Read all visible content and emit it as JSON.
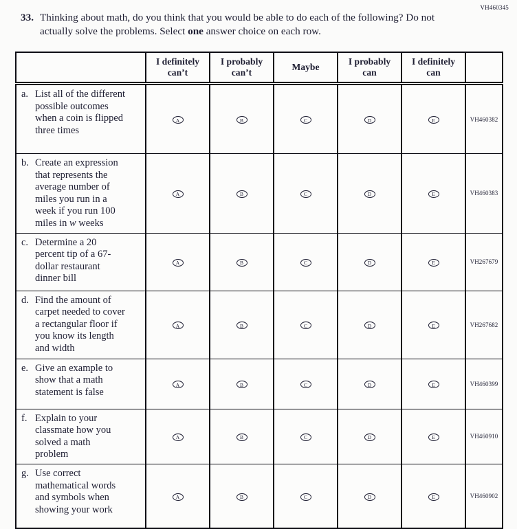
{
  "page": {
    "form_code": "VH460345"
  },
  "question": {
    "number": "33.",
    "runs": [
      {
        "text": "Thinking about math, do you think that you would be able to do each of the following? Do not actually solve the problems. Select "
      },
      {
        "text": "one",
        "bold": true
      },
      {
        "text": " answer choice on each row."
      }
    ]
  },
  "table": {
    "columns": [
      "I definitely can’t",
      "I probably can’t",
      "Maybe",
      "I probably can",
      "I definitely can"
    ],
    "bubble_letters": [
      "A",
      "B",
      "C",
      "D",
      "E"
    ],
    "rows": [
      {
        "letter": "a.",
        "segments": [
          {
            "text": "List all of the different possible outcomes when a coin is flipped three times"
          }
        ],
        "code": "VH460382"
      },
      {
        "letter": "b.",
        "segments": [
          {
            "text": "Create an expression that represents the average number of miles you run in a week if you run 100 miles in "
          },
          {
            "text": "w",
            "italic": true
          },
          {
            "text": " weeks"
          }
        ],
        "code": "VH460383"
      },
      {
        "letter": "c.",
        "segments": [
          {
            "text": "Determine a 20 percent tip of a 67-dollar restaurant dinner bill"
          }
        ],
        "code": "VH267679"
      },
      {
        "letter": "d.",
        "segments": [
          {
            "text": "Find the amount of carpet needed to cover a rectangular floor if you know its length and width"
          }
        ],
        "code": "VH267682"
      },
      {
        "letter": "e.",
        "segments": [
          {
            "text": "Give an example to show that a math statement is false"
          }
        ],
        "code": "VH460399"
      },
      {
        "letter": "f.",
        "segments": [
          {
            "text": "Explain to your classmate how you solved a math problem"
          }
        ],
        "code": "VH460910"
      },
      {
        "letter": "g.",
        "segments": [
          {
            "text": "Use correct mathematical words and symbols when showing your work"
          }
        ],
        "code": "VH460902"
      }
    ]
  },
  "colors": {
    "ink": "#1e1e32",
    "border": "#0d0d14",
    "background": "#fbfbfa"
  }
}
